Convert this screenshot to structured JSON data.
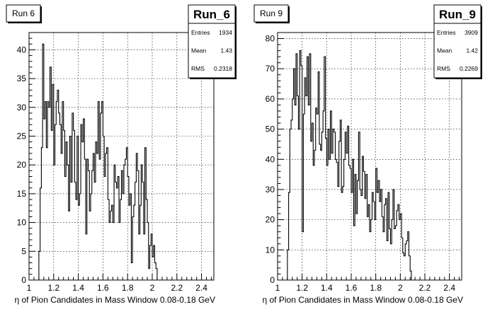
{
  "chart_data": [
    {
      "type": "histogram",
      "title": "Run 6",
      "stats_box": {
        "name": "Run_6",
        "rows": [
          {
            "label": "Entries",
            "value": "1934"
          },
          {
            "label": "Mean",
            "value": "1.43"
          },
          {
            "label": "RMS",
            "value": "0.2318"
          }
        ]
      },
      "xlabel": "η of Pion Candidates in Mass Window 0.08-0.18 GeV",
      "ylabel": "",
      "xlim": [
        1,
        2.5
      ],
      "ylim": [
        0,
        43
      ],
      "x_ticks": [
        "1",
        "1.2",
        "1.4",
        "1.6",
        "1.8",
        "2",
        "2.2",
        "2.4"
      ],
      "y_ticks": [
        "0",
        "5",
        "10",
        "15",
        "20",
        "25",
        "30",
        "35",
        "40"
      ],
      "grid": true,
      "bin_width": 0.01,
      "x_start": 1.08,
      "values": [
        5,
        16,
        23,
        41,
        28,
        31,
        23,
        31,
        30,
        37,
        26,
        34,
        20,
        27,
        31,
        33,
        29,
        27,
        22,
        31,
        26,
        18,
        24,
        20,
        12,
        25,
        17,
        29,
        26,
        17,
        14,
        25,
        13,
        15,
        27,
        24,
        28,
        21,
        8,
        21,
        19,
        12,
        15,
        19,
        22,
        17,
        24,
        22,
        31,
        21,
        29,
        31,
        25,
        18,
        22,
        23,
        14,
        10,
        12,
        13,
        10,
        20,
        17,
        16,
        18,
        10,
        14,
        19,
        15,
        20,
        21,
        23,
        18,
        13,
        15,
        3,
        11,
        13,
        17,
        22,
        19,
        8,
        13,
        20,
        17,
        8,
        23,
        14,
        10,
        2,
        6,
        8,
        4,
        6,
        3,
        2,
        0,
        0,
        0,
        0
      ],
      "bin_widths": null
    },
    {
      "type": "histogram",
      "title": "Run 9",
      "stats_box": {
        "name": "Run_9",
        "rows": [
          {
            "label": "Entries",
            "value": "3909"
          },
          {
            "label": "Mean",
            "value": "1.42"
          },
          {
            "label": "RMS",
            "value": "0.2269"
          }
        ]
      },
      "xlabel": "η of Pion Candidates in Mass Window 0.08-0.18 GeV",
      "ylabel": "",
      "xlim": [
        1,
        2.5
      ],
      "ylim": [
        0,
        82
      ],
      "x_ticks": [
        "1",
        "1.2",
        "1.4",
        "1.6",
        "1.8",
        "2",
        "2.2",
        "2.4"
      ],
      "y_ticks": [
        "0",
        "10",
        "20",
        "30",
        "40",
        "50",
        "60",
        "70",
        "80"
      ],
      "grid": true,
      "bin_width": 0.01,
      "x_start": 1.08,
      "values": [
        10,
        29,
        50,
        53,
        60,
        70,
        58,
        75,
        61,
        50,
        76,
        71,
        16,
        55,
        67,
        61,
        74,
        58,
        75,
        46,
        52,
        38,
        43,
        57,
        55,
        69,
        45,
        43,
        49,
        56,
        74,
        47,
        38,
        50,
        40,
        56,
        42,
        50,
        49,
        40,
        39,
        31,
        46,
        53,
        29,
        31,
        40,
        49,
        42,
        51,
        38,
        37,
        29,
        40,
        18,
        35,
        22,
        33,
        49,
        30,
        28,
        41,
        36,
        27,
        35,
        21,
        25,
        16,
        20,
        29,
        26,
        20,
        37,
        29,
        33,
        26,
        30,
        21,
        16,
        25,
        27,
        13,
        29,
        17,
        12,
        20,
        30,
        17,
        18,
        23,
        25,
        20,
        22,
        14,
        9,
        8,
        12,
        13,
        16,
        8,
        3,
        0,
        0,
        0,
        0,
        0
      ]
    }
  ]
}
